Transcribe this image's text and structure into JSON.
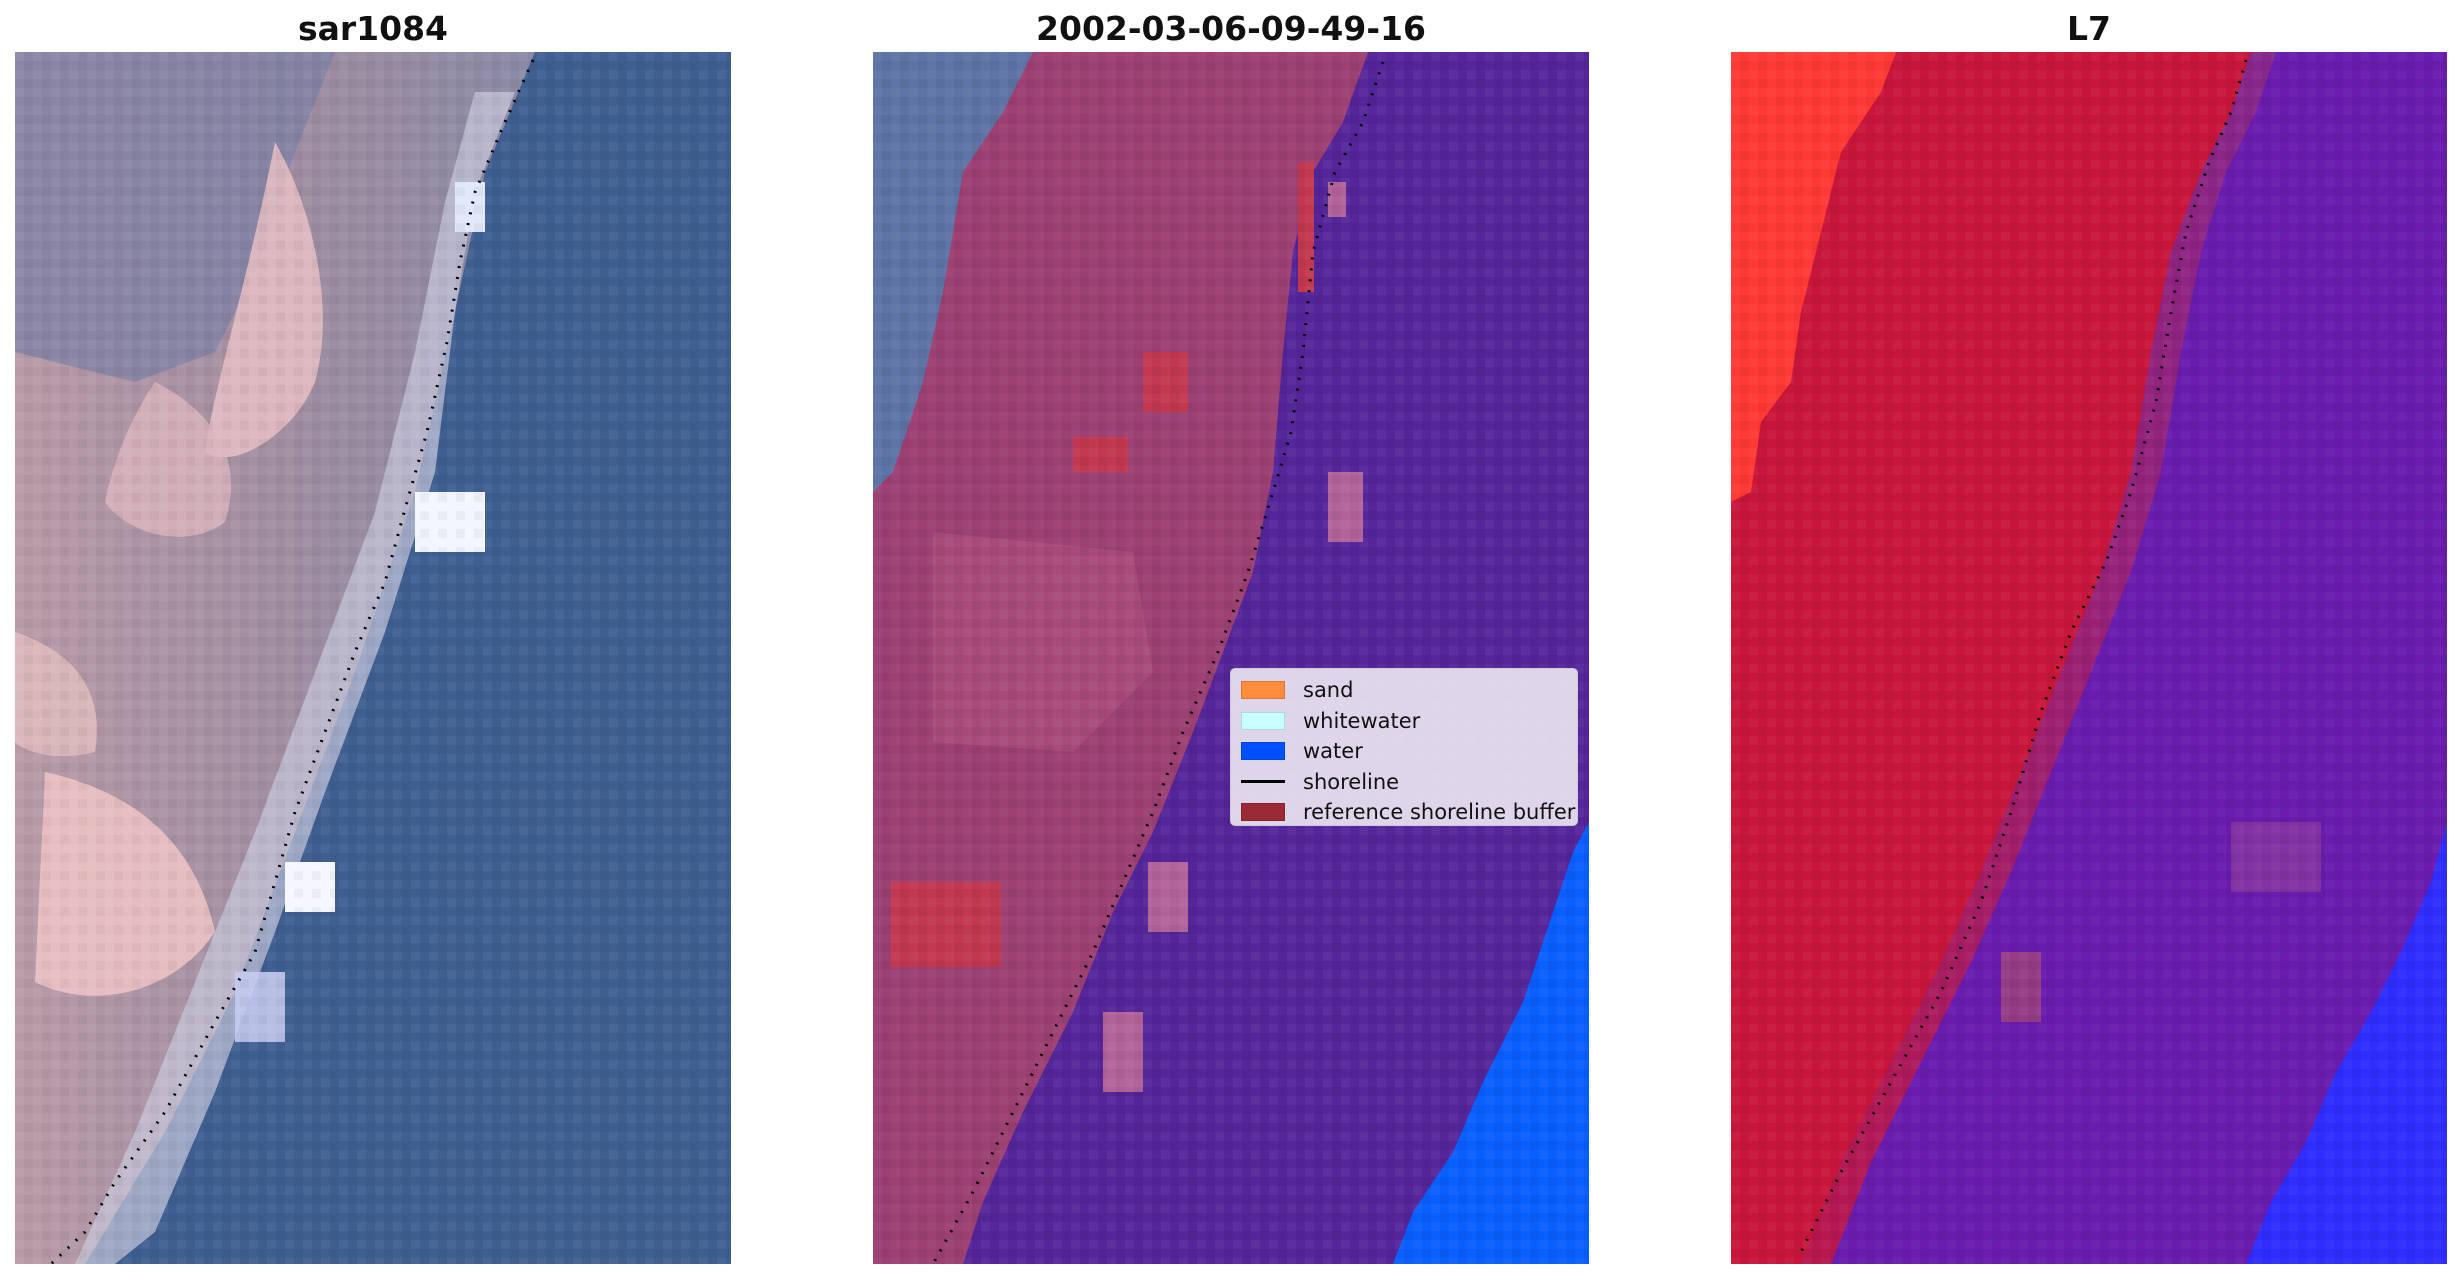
{
  "panels": [
    {
      "title": "sar1084",
      "description": "RGB satellite image of coastline"
    },
    {
      "title": "2002-03-06-09-49-16",
      "description": "classified image with shoreline"
    },
    {
      "title": "L7",
      "description": "MNDWI image"
    }
  ],
  "legend": {
    "items": [
      {
        "label": "sand",
        "color": "#ff8c3c"
      },
      {
        "label": "whitewater",
        "color": "#c8ffff"
      },
      {
        "label": "water",
        "color": "#0050ff"
      },
      {
        "label": "shoreline",
        "color": "#000000"
      },
      {
        "label": "reference shoreline buffer",
        "color": "#9a2a33"
      }
    ]
  },
  "colors": {
    "sea_rgb": "#3e5f90",
    "land_rgb": "#a88f9c",
    "sand_rgb": "#e9c1c4",
    "classified_water": "#55259a",
    "classified_land": "#9d4073",
    "classified_blue": "#0a5fff",
    "mndwi_red": "#c8163b",
    "mndwi_bright_red": "#ff3a36",
    "mndwi_purple": "#6a1cae",
    "mndwi_blue": "#2f2dff"
  }
}
